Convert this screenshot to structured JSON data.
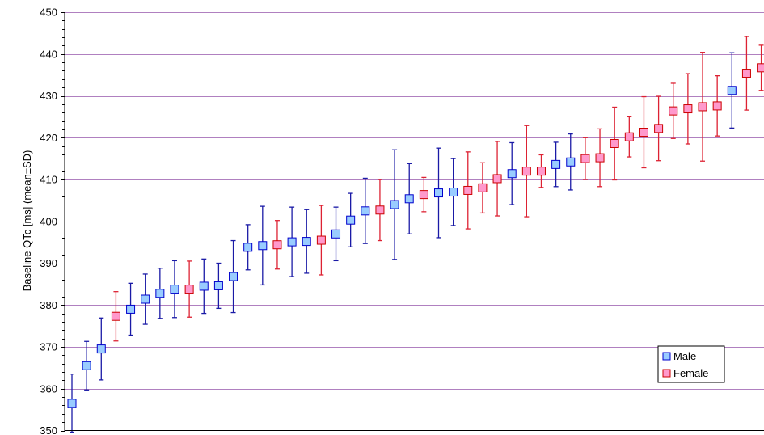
{
  "chart_data": {
    "type": "scatter",
    "title": "",
    "xlabel": "",
    "ylabel": "Baseline QTc [ms] (mean±SD)",
    "ylim": [
      350,
      450
    ],
    "yticks": [
      350,
      360,
      370,
      380,
      390,
      400,
      410,
      420,
      430,
      440,
      450
    ],
    "grid": true,
    "legend_position": "bottom-right",
    "colors": {
      "male_fill": "#99ccff",
      "male_edge": "#0000cc",
      "male_bar": "#1a1aa6",
      "female_fill": "#ff99cc",
      "female_edge": "#cc0000",
      "female_bar": "#dd2233",
      "grid": "#b080c0"
    },
    "series": [
      {
        "name": "Male",
        "key": "male"
      },
      {
        "name": "Female",
        "key": "female"
      }
    ],
    "points": [
      {
        "mean": 356.5,
        "sd": 7.0,
        "sex": "male"
      },
      {
        "mean": 365.5,
        "sd": 5.8,
        "sex": "male"
      },
      {
        "mean": 369.5,
        "sd": 7.4,
        "sex": "male"
      },
      {
        "mean": 377.3,
        "sd": 5.9,
        "sex": "female"
      },
      {
        "mean": 379.0,
        "sd": 6.2,
        "sex": "male"
      },
      {
        "mean": 381.4,
        "sd": 6.0,
        "sex": "male"
      },
      {
        "mean": 382.8,
        "sd": 6.0,
        "sex": "male"
      },
      {
        "mean": 383.8,
        "sd": 6.8,
        "sex": "male"
      },
      {
        "mean": 383.8,
        "sd": 6.7,
        "sex": "female"
      },
      {
        "mean": 384.5,
        "sd": 6.5,
        "sex": "male"
      },
      {
        "mean": 384.6,
        "sd": 5.4,
        "sex": "male"
      },
      {
        "mean": 386.8,
        "sd": 8.6,
        "sex": "male"
      },
      {
        "mean": 393.8,
        "sd": 5.4,
        "sex": "male"
      },
      {
        "mean": 394.2,
        "sd": 9.4,
        "sex": "male"
      },
      {
        "mean": 394.4,
        "sd": 5.8,
        "sex": "female"
      },
      {
        "mean": 395.1,
        "sd": 8.3,
        "sex": "male"
      },
      {
        "mean": 395.2,
        "sd": 7.6,
        "sex": "male"
      },
      {
        "mean": 395.5,
        "sd": 8.3,
        "sex": "female"
      },
      {
        "mean": 397.0,
        "sd": 6.4,
        "sex": "male"
      },
      {
        "mean": 400.3,
        "sd": 6.4,
        "sex": "male"
      },
      {
        "mean": 402.5,
        "sd": 7.8,
        "sex": "male"
      },
      {
        "mean": 402.7,
        "sd": 7.3,
        "sex": "female"
      },
      {
        "mean": 404.0,
        "sd": 13.1,
        "sex": "male"
      },
      {
        "mean": 405.4,
        "sd": 8.4,
        "sex": "male"
      },
      {
        "mean": 406.4,
        "sd": 4.1,
        "sex": "female"
      },
      {
        "mean": 406.8,
        "sd": 10.7,
        "sex": "male"
      },
      {
        "mean": 407.0,
        "sd": 8.0,
        "sex": "male"
      },
      {
        "mean": 407.4,
        "sd": 9.2,
        "sex": "female"
      },
      {
        "mean": 408.0,
        "sd": 6.0,
        "sex": "female"
      },
      {
        "mean": 410.2,
        "sd": 8.9,
        "sex": "female"
      },
      {
        "mean": 411.4,
        "sd": 7.4,
        "sex": "male"
      },
      {
        "mean": 412.0,
        "sd": 10.9,
        "sex": "female"
      },
      {
        "mean": 412.0,
        "sd": 3.9,
        "sex": "female"
      },
      {
        "mean": 413.6,
        "sd": 5.3,
        "sex": "male"
      },
      {
        "mean": 414.2,
        "sd": 6.7,
        "sex": "male"
      },
      {
        "mean": 415.0,
        "sd": 5.0,
        "sex": "female"
      },
      {
        "mean": 415.2,
        "sd": 6.9,
        "sex": "female"
      },
      {
        "mean": 418.6,
        "sd": 8.7,
        "sex": "female"
      },
      {
        "mean": 420.2,
        "sd": 4.8,
        "sex": "female"
      },
      {
        "mean": 421.3,
        "sd": 8.5,
        "sex": "female"
      },
      {
        "mean": 422.2,
        "sd": 7.7,
        "sex": "female"
      },
      {
        "mean": 426.4,
        "sd": 6.6,
        "sex": "female"
      },
      {
        "mean": 426.9,
        "sd": 8.4,
        "sex": "female"
      },
      {
        "mean": 427.4,
        "sd": 13.0,
        "sex": "female"
      },
      {
        "mean": 427.6,
        "sd": 7.2,
        "sex": "female"
      },
      {
        "mean": 431.3,
        "sd": 9.0,
        "sex": "male"
      },
      {
        "mean": 435.4,
        "sd": 8.8,
        "sex": "female"
      },
      {
        "mean": 436.7,
        "sd": 5.4,
        "sex": "female"
      }
    ]
  }
}
